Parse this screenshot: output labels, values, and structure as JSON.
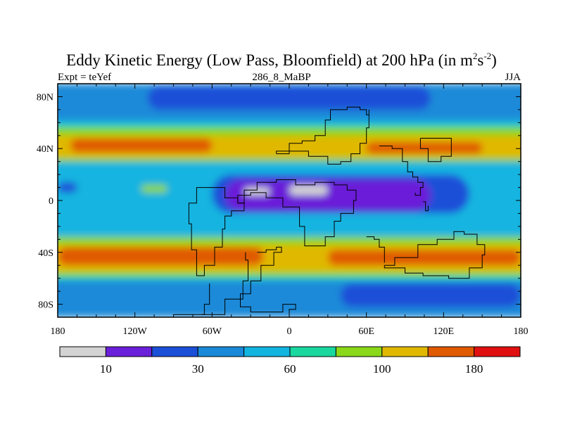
{
  "chart_data": {
    "type": "heatmap",
    "title": "Eddy Kinetic Energy (Low Pass, Bloomfield) at 200 hPa (in m",
    "title_unit_sup1": "2",
    "title_unit_mid": "s",
    "title_unit_sup2": "-2",
    "title_end": ")",
    "subtitle_left": "Expt = teYef",
    "subtitle_center": "286_8_MaBP",
    "subtitle_right": "JJA",
    "xlim": [
      -180,
      180
    ],
    "ylim": [
      -90,
      90
    ],
    "x_ticks": [
      {
        "value": -180,
        "label": "180"
      },
      {
        "value": -120,
        "label": "120W"
      },
      {
        "value": -60,
        "label": "60W"
      },
      {
        "value": 0,
        "label": "0"
      },
      {
        "value": 60,
        "label": "60E"
      },
      {
        "value": 120,
        "label": "120E"
      },
      {
        "value": 180,
        "label": "180"
      }
    ],
    "y_ticks": [
      {
        "value": 80,
        "label": "80N"
      },
      {
        "value": 40,
        "label": "40N"
      },
      {
        "value": 0,
        "label": "0"
      },
      {
        "value": -40,
        "label": "40S"
      },
      {
        "value": -80,
        "label": "80S"
      }
    ],
    "colorbar": {
      "colors": [
        "#d3d3d3",
        "#6a1fd8",
        "#1a4fd8",
        "#1a8ad8",
        "#12b4e0",
        "#18d8a0",
        "#8ad818",
        "#e0b800",
        "#e05a00",
        "#e01010"
      ],
      "labels": [
        {
          "boundary": 1,
          "label": "10"
        },
        {
          "boundary": 3,
          "label": "30"
        },
        {
          "boundary": 5,
          "label": "60"
        },
        {
          "boundary": 7,
          "label": "100"
        },
        {
          "boundary": 9,
          "label": "180"
        }
      ]
    },
    "field_regions": [
      {
        "level": 4,
        "lon": [
          -180,
          180
        ],
        "lat": [
          -90,
          90
        ]
      },
      {
        "level": 3,
        "lon": [
          -180,
          180
        ],
        "lat": [
          62,
          90
        ]
      },
      {
        "level": 3,
        "lon": [
          -180,
          180
        ],
        "lat": [
          -90,
          -62
        ]
      },
      {
        "level": 2,
        "lon": [
          -110,
          110
        ],
        "lat": [
          70,
          88
        ]
      },
      {
        "level": 2,
        "lon": [
          40,
          180
        ],
        "lat": [
          -82,
          -64
        ]
      },
      {
        "level": 5,
        "lon": [
          -180,
          180
        ],
        "lat": [
          42,
          58
        ]
      },
      {
        "level": 5,
        "lon": [
          -180,
          180
        ],
        "lat": [
          -60,
          -44
        ]
      },
      {
        "level": 6,
        "lon": [
          -180,
          180
        ],
        "lat": [
          30,
          56
        ]
      },
      {
        "level": 6,
        "lon": [
          -180,
          180
        ],
        "lat": [
          -58,
          -28
        ]
      },
      {
        "level": 7,
        "lon": [
          -180,
          180
        ],
        "lat": [
          33,
          50
        ]
      },
      {
        "level": 7,
        "lon": [
          -180,
          180
        ],
        "lat": [
          -55,
          -34
        ]
      },
      {
        "level": 8,
        "lon": [
          -170,
          -60
        ],
        "lat": [
          37,
          48
        ]
      },
      {
        "level": 8,
        "lon": [
          60,
          150
        ],
        "lat": [
          36,
          45
        ]
      },
      {
        "level": 8,
        "lon": [
          -180,
          -20
        ],
        "lat": [
          -50,
          -36
        ]
      },
      {
        "level": 8,
        "lon": [
          30,
          180
        ],
        "lat": [
          -50,
          -38
        ]
      },
      {
        "level": 2,
        "lon": [
          -60,
          140
        ],
        "lat": [
          -10,
          20
        ]
      },
      {
        "level": 1,
        "lon": [
          -50,
          110
        ],
        "lat": [
          -8,
          16
        ]
      },
      {
        "level": 0,
        "lon": [
          -35,
          -15
        ],
        "lat": [
          4,
          10
        ]
      },
      {
        "level": 0,
        "lon": [
          0,
          30
        ],
        "lat": [
          4,
          12
        ]
      },
      {
        "level": 2,
        "lon": [
          -180,
          -165
        ],
        "lat": [
          6,
          14
        ]
      },
      {
        "level": 6,
        "lon": [
          -115,
          -95
        ],
        "lat": [
          6,
          12
        ]
      }
    ]
  }
}
